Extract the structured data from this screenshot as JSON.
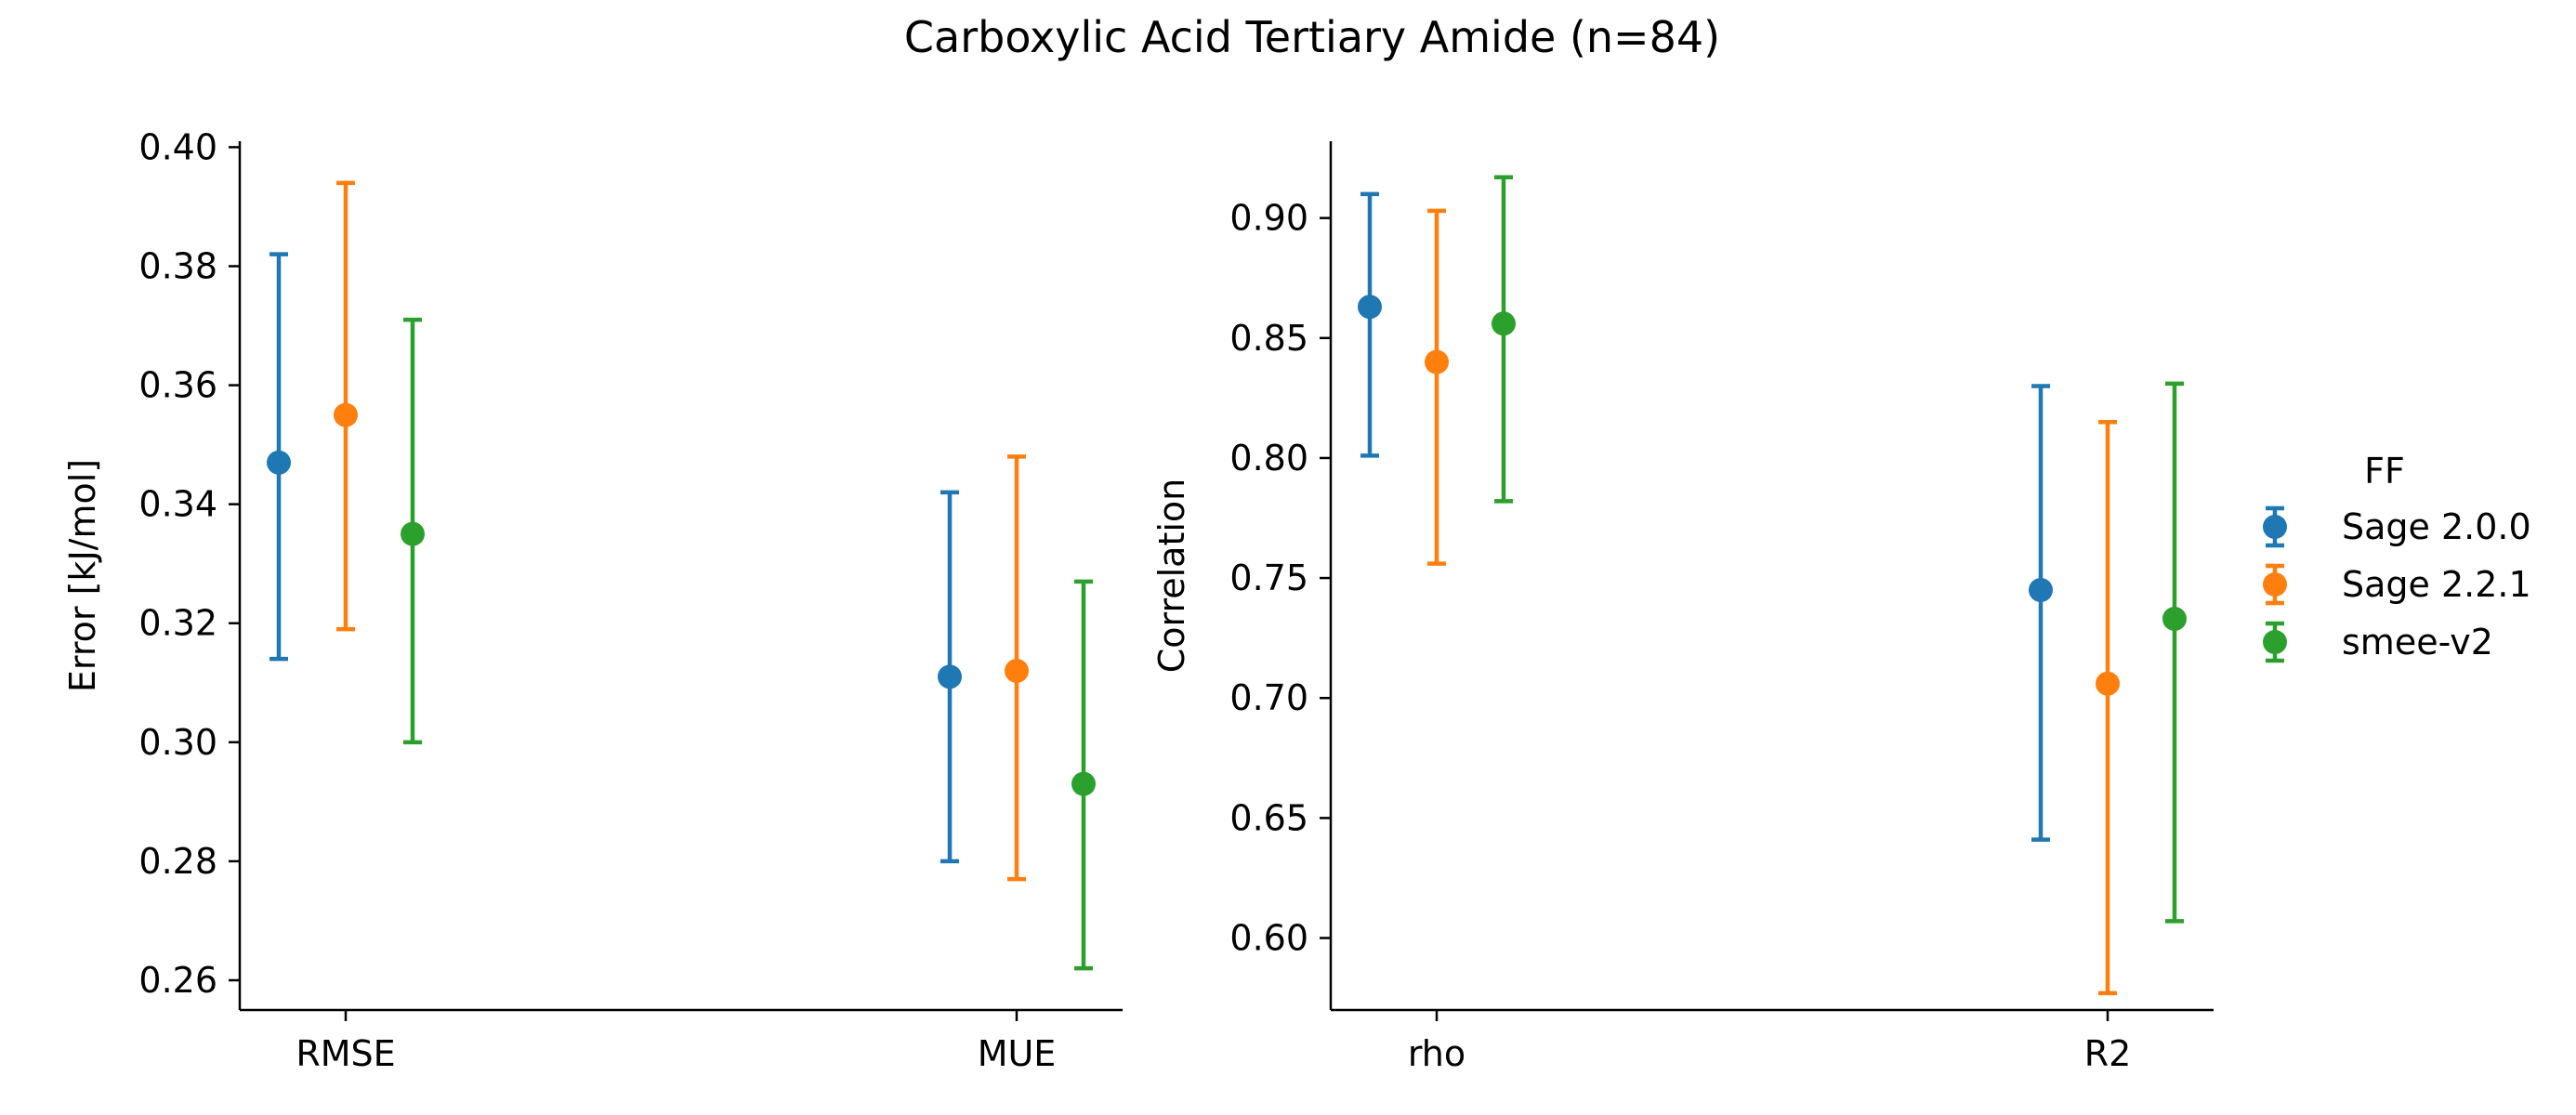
{
  "figure": {
    "title": "Carboxylic Acid Tertiary Amide (n=84)"
  },
  "legend": {
    "title": "FF",
    "placement": "right",
    "items": [
      {
        "label": "Sage 2.0.0",
        "color": "#1f77b4"
      },
      {
        "label": "Sage 2.2.1",
        "color": "#ff7f0e"
      },
      {
        "label": "smee-v2",
        "color": "#2ca02c"
      }
    ]
  },
  "chart_data": [
    {
      "type": "scatter",
      "subtype": "point-with-error-bars",
      "title": "",
      "xlabel": "",
      "ylabel": "Error [kJ/mol]",
      "categories": [
        "RMSE",
        "MUE"
      ],
      "ylim": [
        0.255,
        0.401
      ],
      "yticks": [
        0.26,
        0.28,
        0.3,
        0.32,
        0.34,
        0.36,
        0.38,
        0.4
      ],
      "ytick_labels": [
        "0.26",
        "0.28",
        "0.30",
        "0.32",
        "0.34",
        "0.36",
        "0.38",
        "0.40"
      ],
      "grid": false,
      "series": [
        {
          "name": "Sage 2.0.0",
          "color": "#1f77b4",
          "values": [
            0.347,
            0.311
          ],
          "lower": [
            0.314,
            0.28
          ],
          "upper": [
            0.382,
            0.342
          ]
        },
        {
          "name": "Sage 2.2.1",
          "color": "#ff7f0e",
          "values": [
            0.355,
            0.312
          ],
          "lower": [
            0.319,
            0.277
          ],
          "upper": [
            0.394,
            0.348
          ]
        },
        {
          "name": "smee-v2",
          "color": "#2ca02c",
          "values": [
            0.335,
            0.293
          ],
          "lower": [
            0.3,
            0.262
          ],
          "upper": [
            0.371,
            0.327
          ]
        }
      ]
    },
    {
      "type": "scatter",
      "subtype": "point-with-error-bars",
      "title": "",
      "xlabel": "",
      "ylabel": "Correlation",
      "categories": [
        "rho",
        "R2"
      ],
      "ylim": [
        0.57,
        0.932
      ],
      "yticks": [
        0.6,
        0.65,
        0.7,
        0.75,
        0.8,
        0.85,
        0.9
      ],
      "ytick_labels": [
        "0.60",
        "0.65",
        "0.70",
        "0.75",
        "0.80",
        "0.85",
        "0.90"
      ],
      "grid": false,
      "series": [
        {
          "name": "Sage 2.0.0",
          "color": "#1f77b4",
          "values": [
            0.863,
            0.745
          ],
          "lower": [
            0.801,
            0.641
          ],
          "upper": [
            0.91,
            0.83
          ]
        },
        {
          "name": "Sage 2.2.1",
          "color": "#ff7f0e",
          "values": [
            0.84,
            0.706
          ],
          "lower": [
            0.756,
            0.577
          ],
          "upper": [
            0.903,
            0.815
          ]
        },
        {
          "name": "smee-v2",
          "color": "#2ca02c",
          "values": [
            0.856,
            0.733
          ],
          "lower": [
            0.782,
            0.607
          ],
          "upper": [
            0.917,
            0.831
          ]
        }
      ]
    }
  ]
}
